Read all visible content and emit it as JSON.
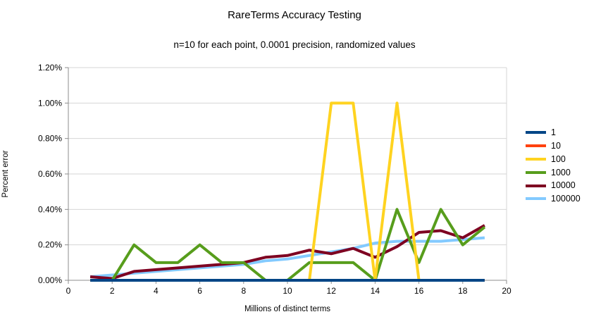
{
  "window": {
    "background": "#ffffff"
  },
  "chart_data": {
    "type": "line",
    "title": "RareTerms Accuracy Testing",
    "subtitle": "n=10 for each point, 0.0001 precision, randomized values",
    "xlabel": "Millions of distinct terms",
    "ylabel": "Percent error",
    "xlim": [
      0,
      20
    ],
    "ylim": [
      0,
      1.2
    ],
    "grid": "horizontal-only",
    "legend_position": "right",
    "axis_color": "#8c8c8c",
    "grid_color": "#d6d6d6",
    "text_color": "#000000",
    "x": [
      1,
      2,
      3,
      4,
      5,
      6,
      7,
      8,
      9,
      10,
      11,
      12,
      13,
      14,
      15,
      16,
      17,
      18,
      19
    ],
    "x_ticks": {
      "values": [
        0,
        2,
        4,
        6,
        8,
        10,
        12,
        14,
        16,
        18,
        20
      ],
      "labels": [
        "0",
        "2",
        "4",
        "6",
        "8",
        "10",
        "12",
        "14",
        "16",
        "18",
        "20"
      ]
    },
    "y_ticks": {
      "values": [
        0,
        0.2,
        0.4,
        0.6,
        0.8,
        1.0,
        1.2
      ],
      "labels": [
        "0.00%",
        "0.20%",
        "0.40%",
        "0.60%",
        "0.80%",
        "1.00%",
        "1.20%"
      ]
    },
    "series": [
      {
        "name": "1",
        "color": "#004586",
        "values": [
          0,
          0,
          0,
          0,
          0,
          0,
          0,
          0,
          0,
          0,
          0,
          0,
          0,
          0,
          0,
          0,
          0,
          0,
          0
        ]
      },
      {
        "name": "10",
        "color": "#ff420e",
        "values": [
          0,
          0,
          0,
          0,
          0,
          0,
          0,
          0,
          0,
          0,
          0,
          0,
          0,
          0,
          0,
          0,
          0,
          0,
          0
        ]
      },
      {
        "name": "100",
        "color": "#ffd320",
        "values": [
          0,
          0,
          0,
          0,
          0,
          0,
          0,
          0,
          0,
          0,
          0,
          1.0,
          1.0,
          0,
          1.0,
          0,
          0,
          0,
          0
        ]
      },
      {
        "name": "1000",
        "color": "#579d1c",
        "values": [
          0,
          0,
          0.2,
          0.1,
          0.1,
          0.2,
          0.1,
          0.1,
          0,
          0,
          0.1,
          0.1,
          0.1,
          0,
          0.4,
          0.1,
          0.4,
          0.2,
          0.3
        ]
      },
      {
        "name": "10000",
        "color": "#7e0021",
        "values": [
          0.02,
          0.01,
          0.05,
          0.06,
          0.07,
          0.08,
          0.09,
          0.1,
          0.13,
          0.14,
          0.17,
          0.15,
          0.18,
          0.13,
          0.19,
          0.27,
          0.28,
          0.24,
          0.31
        ]
      },
      {
        "name": "100000",
        "color": "#83caff",
        "values": [
          0.02,
          0.03,
          0.04,
          0.05,
          0.06,
          0.07,
          0.08,
          0.09,
          0.11,
          0.12,
          0.14,
          0.16,
          0.18,
          0.21,
          0.22,
          0.22,
          0.22,
          0.23,
          0.24
        ]
      }
    ]
  }
}
